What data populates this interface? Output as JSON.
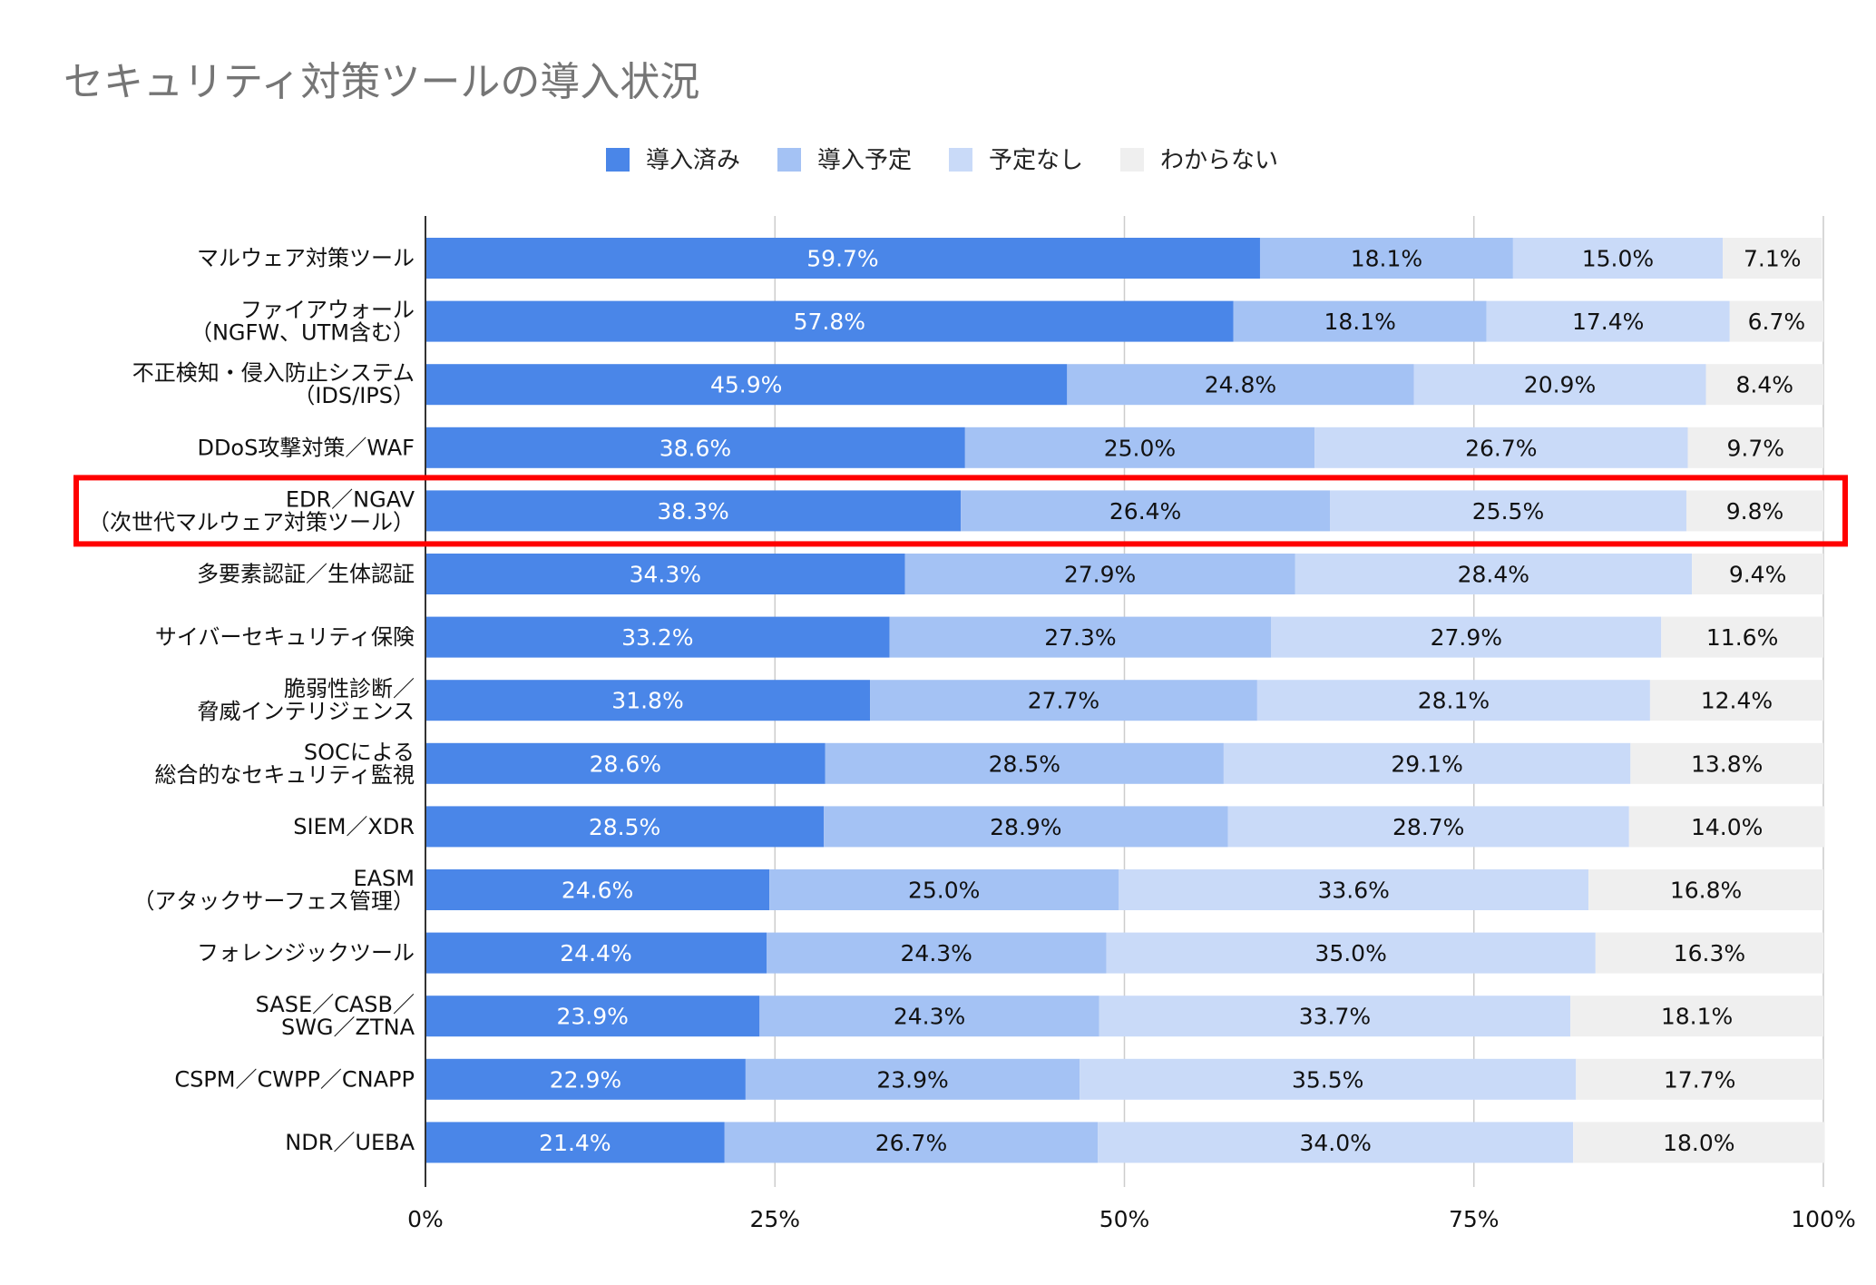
{
  "chart_data": {
    "type": "bar",
    "orientation": "horizontal",
    "stacked": "percent",
    "title": "セキュリティ対策ツールの導入状況",
    "legend_position": "top",
    "xlim": [
      0,
      100
    ],
    "x_ticks": [
      "0%",
      "25%",
      "50%",
      "75%",
      "100%"
    ],
    "x_tick_values": [
      0,
      25,
      50,
      75,
      100
    ],
    "grid": true,
    "highlighted_category_index": 4,
    "highlight_color": "#ff0000",
    "categories": [
      [
        "マルウェア対策ツール"
      ],
      [
        "ファイアウォール",
        "（NGFW、UTM含む）"
      ],
      [
        "不正検知・侵入防止システム",
        "（IDS/IPS）"
      ],
      [
        "DDoS攻撃対策／WAF"
      ],
      [
        "EDR／NGAV",
        "（次世代マルウェア対策ツール）"
      ],
      [
        "多要素認証／生体認証"
      ],
      [
        "サイバーセキュリティ保険"
      ],
      [
        "脆弱性診断／",
        "脅威インテリジェンス"
      ],
      [
        "SOCによる",
        "総合的なセキュリティ監視"
      ],
      [
        "SIEM／XDR"
      ],
      [
        "EASM",
        "（アタックサーフェス管理）"
      ],
      [
        "フォレンジックツール"
      ],
      [
        "SASE／CASB／",
        "SWG／ZTNA"
      ],
      [
        "CSPM／CWPP／CNAPP"
      ],
      [
        "NDR／UEBA"
      ]
    ],
    "series": [
      {
        "name": "導入済み",
        "color": "#4a86e8",
        "label_color": "#ffffff",
        "values": [
          59.7,
          57.8,
          45.9,
          38.6,
          38.3,
          34.3,
          33.2,
          31.8,
          28.6,
          28.5,
          24.6,
          24.4,
          23.9,
          22.9,
          21.4
        ]
      },
      {
        "name": "導入予定",
        "color": "#a4c2f4",
        "label_color": "#111111",
        "values": [
          18.1,
          18.1,
          24.8,
          25.0,
          26.4,
          27.9,
          27.3,
          27.7,
          28.5,
          28.9,
          25.0,
          24.3,
          24.3,
          23.9,
          26.7
        ]
      },
      {
        "name": "予定なし",
        "color": "#c9daf8",
        "label_color": "#111111",
        "values": [
          15.0,
          17.4,
          20.9,
          26.7,
          25.5,
          28.4,
          27.9,
          28.1,
          29.1,
          28.7,
          33.6,
          35.0,
          33.7,
          35.5,
          34.0
        ]
      },
      {
        "name": "わからない",
        "color": "#efefef",
        "label_color": "#111111",
        "values": [
          7.1,
          6.7,
          8.4,
          9.7,
          9.8,
          9.4,
          11.6,
          12.4,
          13.8,
          14.0,
          16.8,
          16.3,
          18.1,
          17.7,
          18.0
        ]
      }
    ]
  }
}
